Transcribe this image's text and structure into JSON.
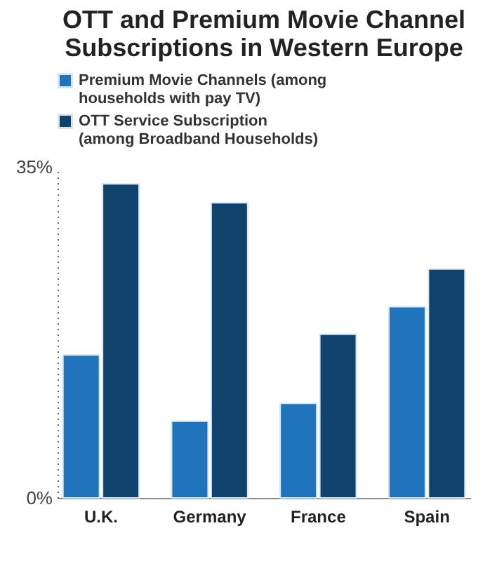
{
  "chart_data": {
    "type": "bar",
    "title": "OTT and Premium Movie Channel Subscriptions in Western Europe",
    "categories": [
      "U.K.",
      "Germany",
      "France",
      "Spain"
    ],
    "series": [
      {
        "name": "Premium Movie Channels (among households with pay TV)",
        "color": "#1f74bb",
        "values": [
          15.1,
          8.1,
          10.0,
          20.2
        ]
      },
      {
        "name": "OTT Service Subscription (among Broadband Households)",
        "color": "#0f426c",
        "values": [
          33.2,
          31.2,
          17.3,
          24.2
        ]
      }
    ],
    "ylim": [
      0,
      35
    ],
    "yticks": [
      {
        "value": 0,
        "label": "0%"
      },
      {
        "value": 35,
        "label": "35%"
      }
    ],
    "grid": false,
    "legend": "top"
  }
}
